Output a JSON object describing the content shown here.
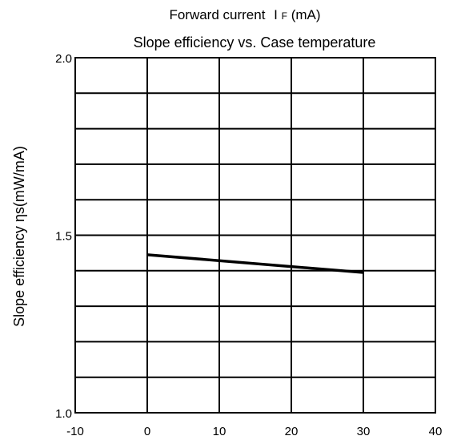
{
  "chart_data": {
    "type": "line",
    "top_label": "Forward current",
    "top_label_symbol": "I",
    "top_label_subscript": "F",
    "top_label_unit": "(mA)",
    "title": "Slope efficiency vs. Case temperature",
    "ylabel": "Slope efficiency ηs(mW/mA)",
    "xlim": [
      -10,
      40
    ],
    "ylim": [
      1.0,
      2.0
    ],
    "x_ticks": [
      "-10",
      "0",
      "10",
      "20",
      "30",
      "40"
    ],
    "y_ticks": [
      "1.0",
      "1.5",
      "2.0"
    ],
    "x_gridlines": [
      -10,
      0,
      10,
      20,
      30,
      40
    ],
    "y_gridlines": [
      1.0,
      1.1,
      1.2,
      1.3,
      1.4,
      1.5,
      1.6,
      1.7,
      1.8,
      1.9,
      2.0
    ],
    "grid": true,
    "legend": "none",
    "series": [
      {
        "x": [
          0,
          30
        ],
        "y": [
          1.445,
          1.395
        ]
      }
    ],
    "line_color": "#000000"
  }
}
